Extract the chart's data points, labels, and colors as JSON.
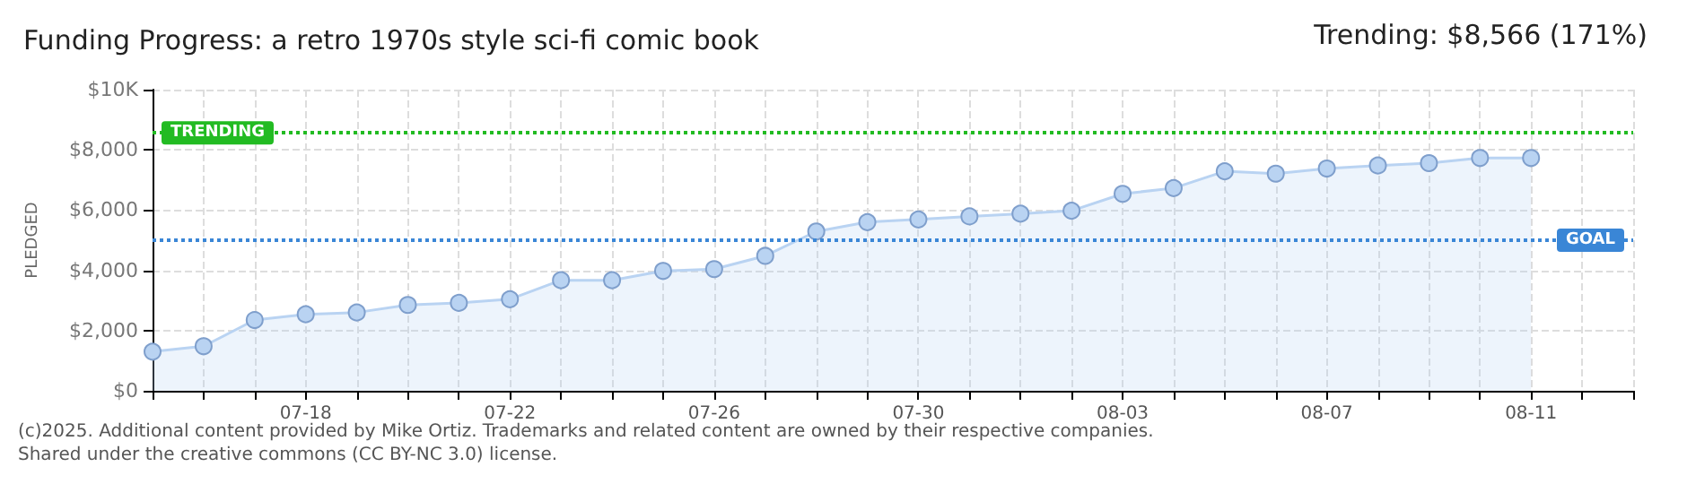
{
  "chart_data": {
    "type": "area",
    "title": "Funding Progress: a retro 1970s style sci-fi comic book",
    "annotations": [
      "Trending: $8,566 (171%)",
      "(c)2025. Additional content provided by Mike Ortiz. Trademarks and related content are owned by their respective companies.",
      "Shared under the creative commons (CC BY-NC 3.0) license."
    ],
    "ylabel": "PLEDGED",
    "x": [
      "--07-15",
      "--07-16",
      "--07-17",
      "--07-18",
      "--07-19",
      "--07-20",
      "--07-21",
      "--07-22",
      "--07-23",
      "--07-24",
      "--07-25",
      "--07-26",
      "--07-27",
      "--07-28",
      "--07-29",
      "--07-30",
      "--07-31",
      "--08-01",
      "--08-02",
      "--08-03",
      "--08-04",
      "--08-05",
      "--08-06",
      "--08-07",
      "--08-08",
      "--08-09",
      "--08-10",
      "--08-11"
    ],
    "series": [
      {
        "color": "#b9d3f2",
        "values": [
          1300,
          1480,
          2350,
          2540,
          2600,
          2850,
          2920,
          3040,
          3670,
          3670,
          3980,
          4040,
          4480,
          5290,
          5600,
          5690,
          5790,
          5880,
          5980,
          6540,
          6730,
          7290,
          7210,
          7380,
          7480,
          7560,
          7730,
          7730
        ]
      }
    ],
    "xlim": [
      "--07-15",
      "--08-13"
    ],
    "xticks": [
      {
        "value": "--07-15",
        "label": null
      },
      {
        "value": "--07-16",
        "label": null
      },
      {
        "value": "--07-17",
        "label": null
      },
      {
        "value": "--07-18",
        "label": "07-18"
      },
      {
        "value": "--07-19",
        "label": null
      },
      {
        "value": "--07-20",
        "label": null
      },
      {
        "value": "--07-21",
        "label": null
      },
      {
        "value": "--07-22",
        "label": "07-22"
      },
      {
        "value": "--07-23",
        "label": null
      },
      {
        "value": "--07-24",
        "label": null
      },
      {
        "value": "--07-25",
        "label": null
      },
      {
        "value": "--07-26",
        "label": "07-26"
      },
      {
        "value": "--07-27",
        "label": null
      },
      {
        "value": "--07-28",
        "label": null
      },
      {
        "value": "--07-29",
        "label": null
      },
      {
        "value": "--07-30",
        "label": "07-30"
      },
      {
        "value": "--07-31",
        "label": null
      },
      {
        "value": "--08-01",
        "label": null
      },
      {
        "value": "--08-02",
        "label": null
      },
      {
        "value": "--08-03",
        "label": "08-03"
      },
      {
        "value": "--08-04",
        "label": null
      },
      {
        "value": "--08-05",
        "label": null
      },
      {
        "value": "--08-06",
        "label": null
      },
      {
        "value": "--08-07",
        "label": "08-07"
      },
      {
        "value": "--08-08",
        "label": null
      },
      {
        "value": "--08-09",
        "label": null
      },
      {
        "value": "--08-10",
        "label": null
      },
      {
        "value": "--08-11",
        "label": "08-11"
      },
      {
        "value": "--08-12",
        "label": null
      },
      {
        "value": "--08-13",
        "label": null
      }
    ],
    "ylim": [
      0,
      10000
    ],
    "yticks": [
      {
        "value": 0,
        "label": "$0"
      },
      {
        "value": 2000,
        "label": "$2,000"
      },
      {
        "value": 4000,
        "label": "$4,000"
      },
      {
        "value": 6000,
        "label": "$6,000"
      },
      {
        "value": 8000,
        "label": "$8,000"
      },
      {
        "value": 10000,
        "label": "$10K"
      }
    ],
    "ref_lines": [
      {
        "axis": "y",
        "value": 8566,
        "label": "TRENDING",
        "color": "#22bb22",
        "line_style": "dotted"
      },
      {
        "axis": "y",
        "value": 5000,
        "label": "GOAL",
        "color": "#3a86d6",
        "line_style": "dotted"
      }
    ],
    "grid": true,
    "marker": "circle",
    "line_style": "solid"
  }
}
